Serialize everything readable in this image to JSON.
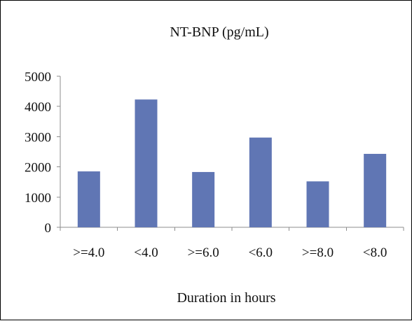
{
  "chart_data": {
    "type": "bar",
    "title": "NT-BNP (pg/mL)",
    "xlabel": "Duration in hours",
    "ylabel": "",
    "categories": [
      ">=4.0",
      "<4.0",
      ">=6.0",
      "<6.0",
      ">=8.0",
      "<8.0"
    ],
    "values": [
      1850,
      4230,
      1830,
      2970,
      1520,
      2430
    ],
    "ylim": [
      0,
      5000
    ],
    "yticks": [
      0,
      1000,
      2000,
      3000,
      4000,
      5000
    ],
    "grid": false,
    "legend": "none",
    "colors": {
      "bar": "#6076b4",
      "axis": "#8c8c8c",
      "text": "#111111",
      "frame": "#000000"
    }
  }
}
